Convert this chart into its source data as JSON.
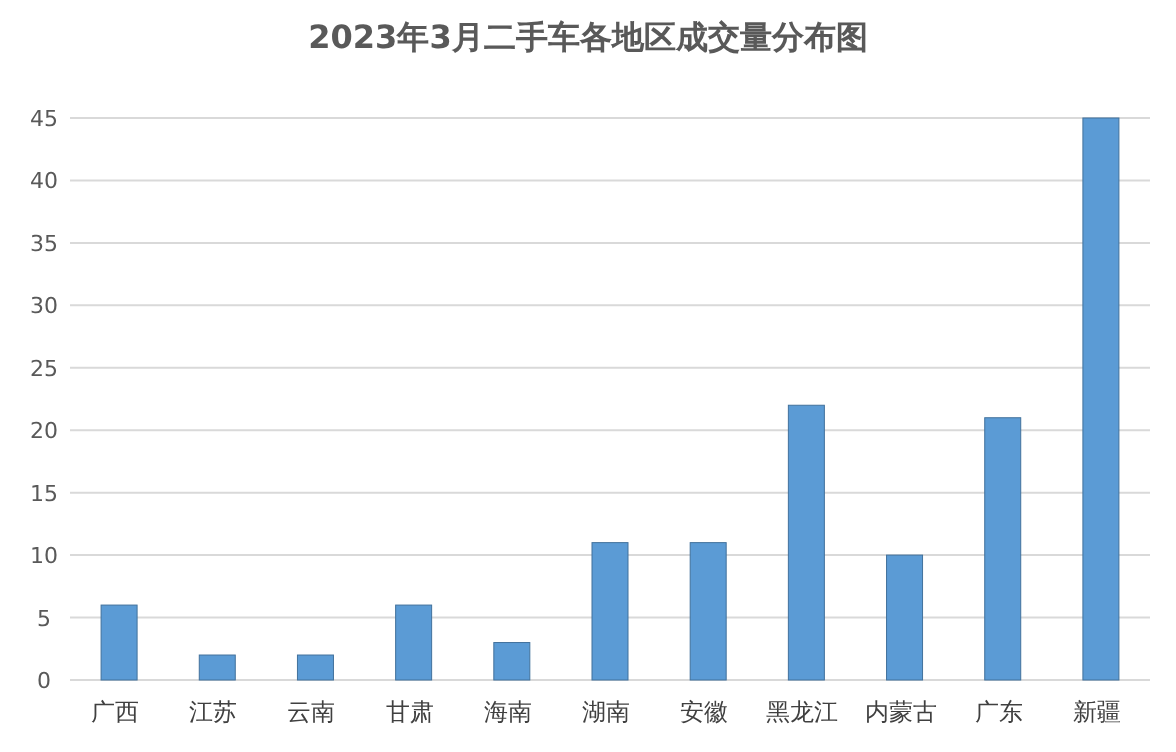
{
  "chart_data": {
    "type": "bar",
    "title": "2023年3月二手车各地区成交量分布图",
    "categories": [
      "广西",
      "江苏",
      "云南",
      "甘肃",
      "海南",
      "湖南",
      "安徽",
      "黑龙江",
      "内蒙古",
      "广东",
      "新疆"
    ],
    "values": [
      6,
      2,
      2,
      6,
      3,
      11,
      11,
      22,
      10,
      21,
      45
    ],
    "color": "#5b9bd5",
    "ylim": [
      0,
      45
    ],
    "yticks": [
      0,
      5,
      10,
      15,
      20,
      25,
      30,
      35,
      40,
      45
    ],
    "grid": "y"
  }
}
